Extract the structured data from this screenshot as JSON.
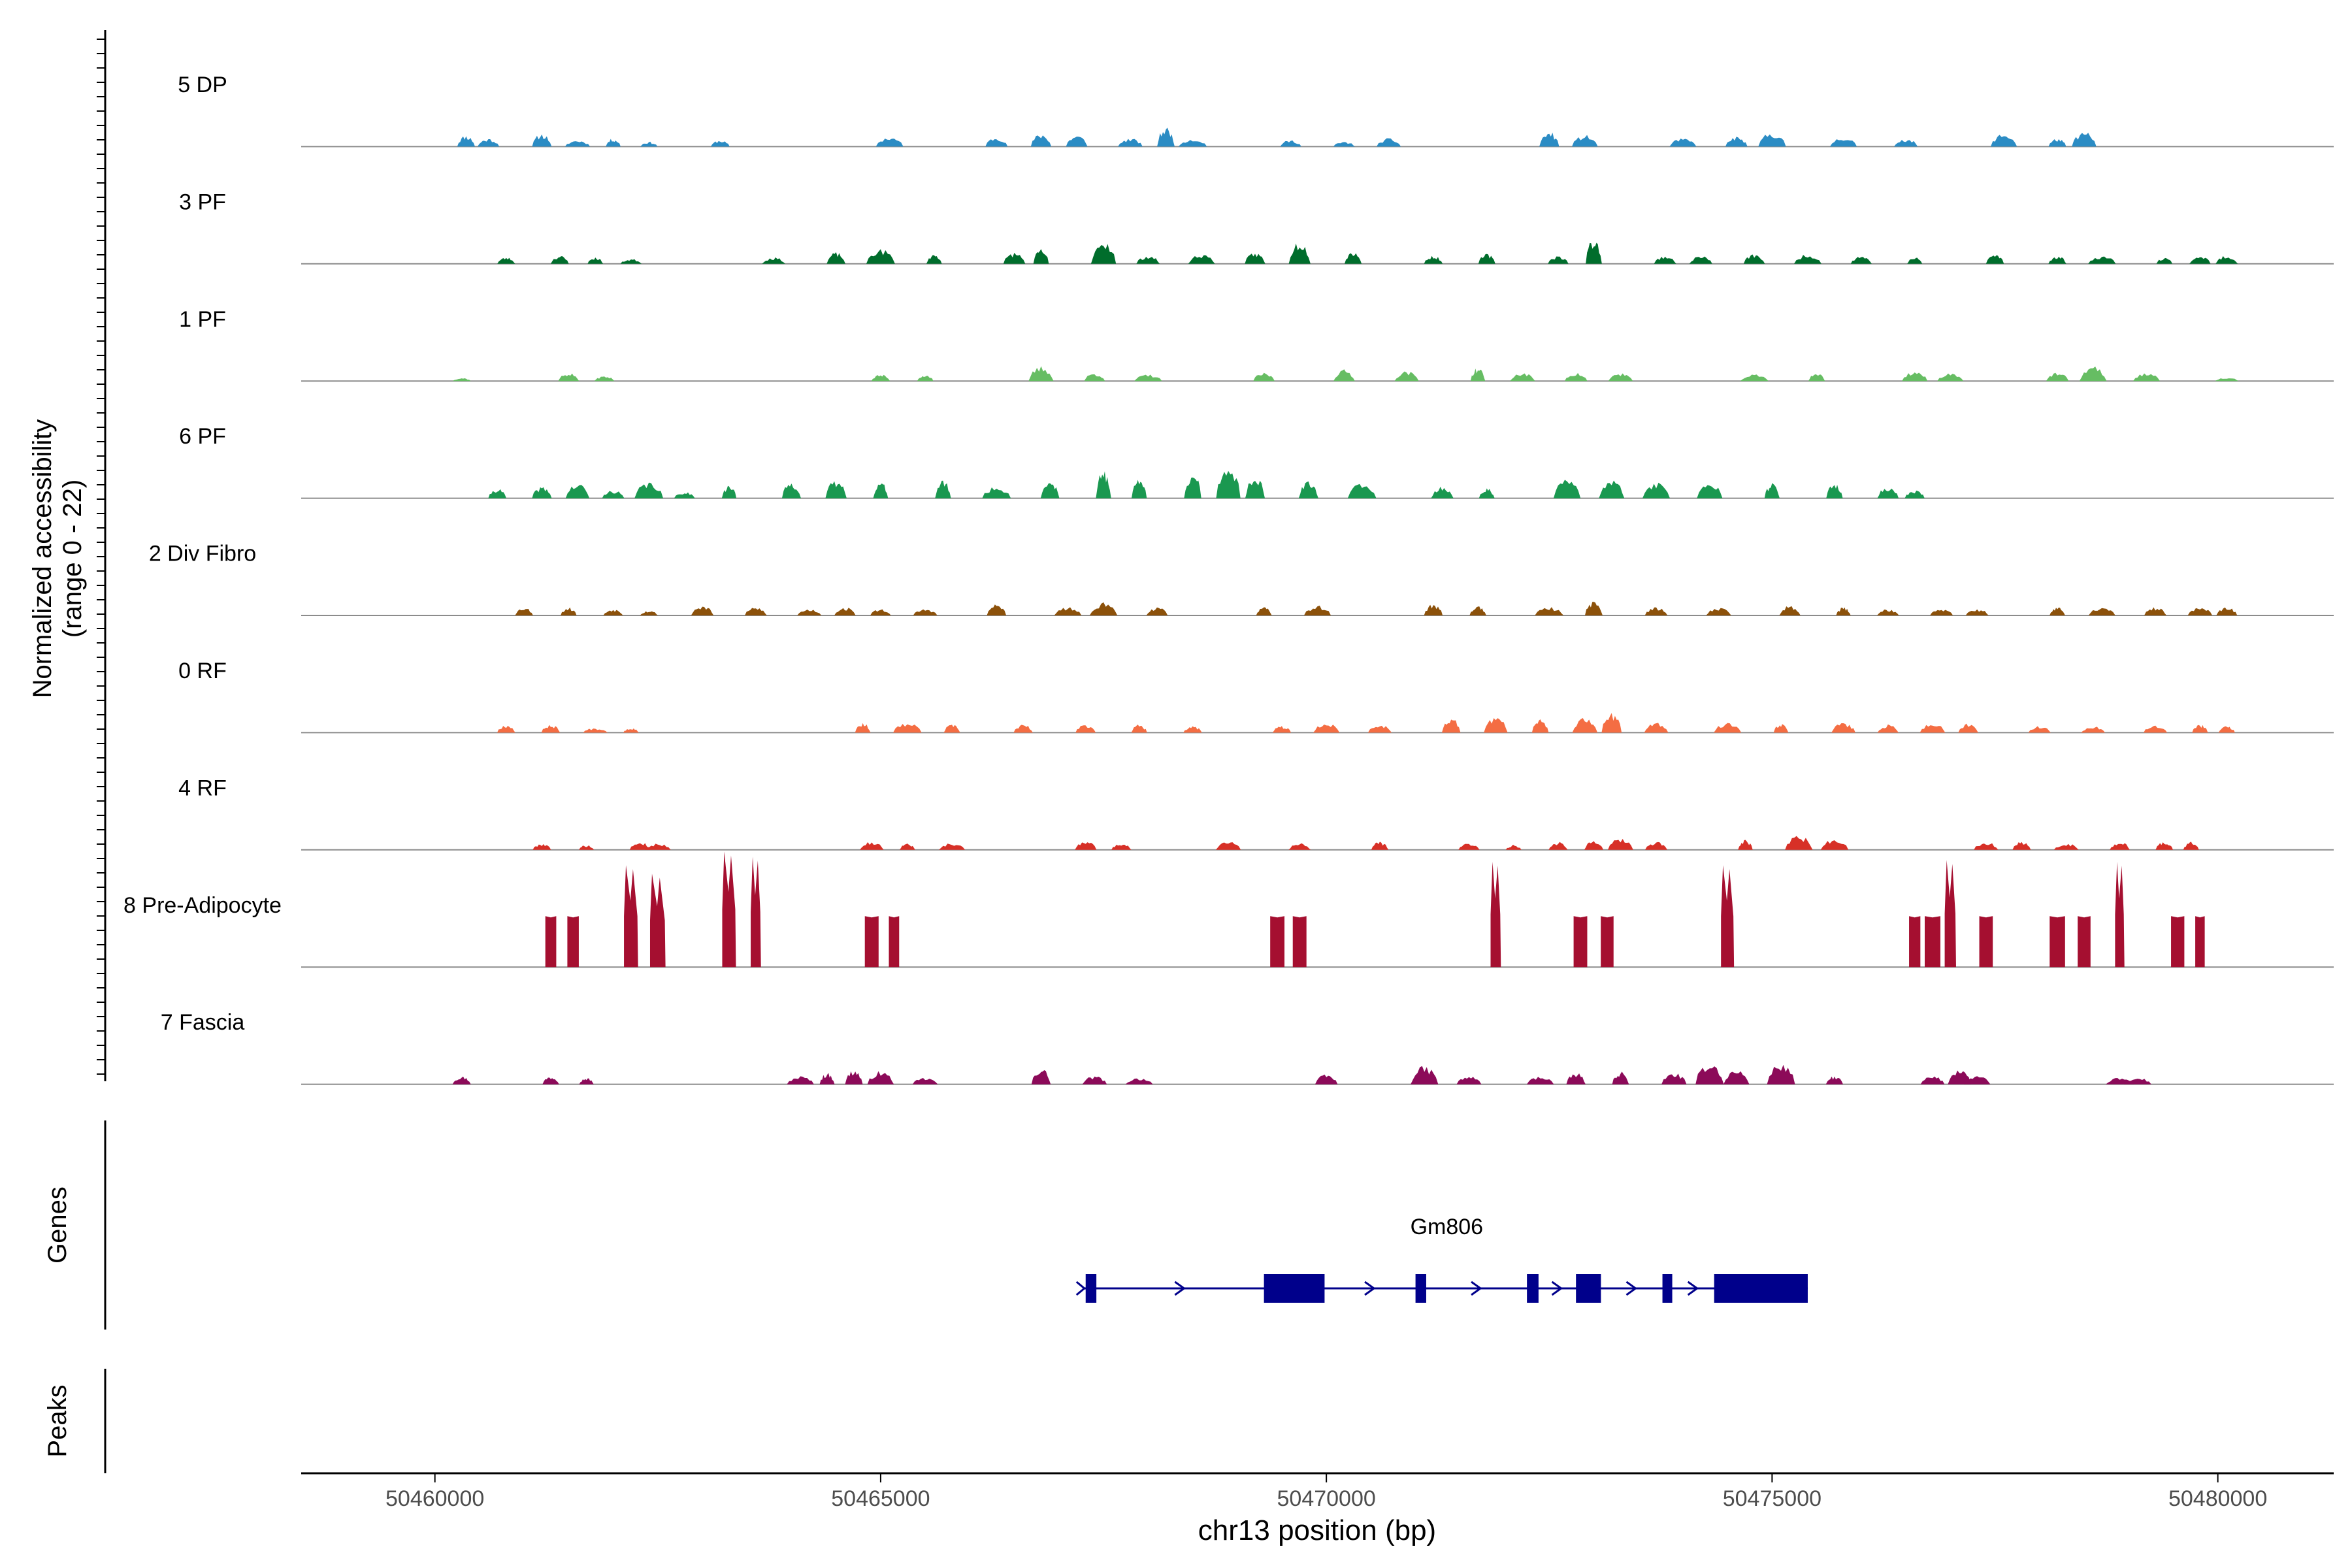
{
  "chart_data": {
    "type": "area",
    "title": "",
    "ylabel_line1": "Normalized accessibility",
    "ylabel_line2": "(range 0 - 22)",
    "xlabel": "chr13 position (bp)",
    "xlim": [
      50458500,
      50481300
    ],
    "xticks": [
      50460000,
      50465000,
      50470000,
      50475000,
      50480000
    ],
    "xtick_labels": [
      "50460000",
      "50465000",
      "50470000",
      "50475000",
      "50480000"
    ],
    "ylim": [
      0,
      22
    ],
    "genes_label": "Genes",
    "peaks_label": "Peaks",
    "tracks": [
      {
        "name": "5 DP",
        "color": "#2b8cc4",
        "seed": 11,
        "peaks": [
          [
            50460350,
            0.7
          ],
          [
            50460600,
            0.5
          ],
          [
            50461200,
            0.8
          ],
          [
            50461600,
            0.4
          ],
          [
            50462000,
            0.5
          ],
          [
            50462400,
            0.3
          ],
          [
            50463200,
            0.4
          ],
          [
            50465100,
            0.6
          ],
          [
            50466300,
            0.6
          ],
          [
            50466800,
            0.8
          ],
          [
            50467200,
            0.7
          ],
          [
            50467800,
            0.5
          ],
          [
            50468200,
            1.2
          ],
          [
            50468500,
            0.5
          ],
          [
            50469600,
            0.4
          ],
          [
            50470200,
            0.3
          ],
          [
            50470700,
            0.5
          ],
          [
            50472500,
            0.9
          ],
          [
            50472900,
            0.7
          ],
          [
            50474000,
            0.5
          ],
          [
            50474600,
            0.6
          ],
          [
            50475000,
            0.9
          ],
          [
            50475800,
            0.6
          ],
          [
            50476500,
            0.5
          ],
          [
            50477600,
            0.8
          ],
          [
            50478200,
            0.5
          ],
          [
            50478500,
            0.9
          ]
        ]
      },
      {
        "name": "3 PF",
        "color": "#006d2c",
        "seed": 23,
        "peaks": [
          [
            50460800,
            0.4
          ],
          [
            50461400,
            0.5
          ],
          [
            50461800,
            0.4
          ],
          [
            50462200,
            0.3
          ],
          [
            50463800,
            0.4
          ],
          [
            50464500,
            0.7
          ],
          [
            50465000,
            0.9
          ],
          [
            50465600,
            0.6
          ],
          [
            50466500,
            0.7
          ],
          [
            50466800,
            0.9
          ],
          [
            50467500,
            1.5
          ],
          [
            50468000,
            0.5
          ],
          [
            50468600,
            0.6
          ],
          [
            50469200,
            0.7
          ],
          [
            50469700,
            1.4
          ],
          [
            50470300,
            0.8
          ],
          [
            50471200,
            0.5
          ],
          [
            50471800,
            0.6
          ],
          [
            50472600,
            0.5
          ],
          [
            50473000,
            1.6
          ],
          [
            50473800,
            0.5
          ],
          [
            50474200,
            0.5
          ],
          [
            50474800,
            0.6
          ],
          [
            50475400,
            0.6
          ],
          [
            50476000,
            0.5
          ],
          [
            50476600,
            0.4
          ],
          [
            50477500,
            0.6
          ],
          [
            50478200,
            0.5
          ],
          [
            50478700,
            0.5
          ],
          [
            50479400,
            0.4
          ],
          [
            50479800,
            0.5
          ],
          [
            50480100,
            0.5
          ]
        ]
      },
      {
        "name": "1 PF",
        "color": "#66bd63",
        "seed": 37,
        "peaks": [
          [
            50460300,
            0.2
          ],
          [
            50461500,
            0.5
          ],
          [
            50461900,
            0.3
          ],
          [
            50465000,
            0.4
          ],
          [
            50465500,
            0.4
          ],
          [
            50466800,
            0.9
          ],
          [
            50467400,
            0.5
          ],
          [
            50468000,
            0.4
          ],
          [
            50469300,
            0.5
          ],
          [
            50470200,
            0.7
          ],
          [
            50470900,
            0.6
          ],
          [
            50471700,
            0.8
          ],
          [
            50472200,
            0.5
          ],
          [
            50472800,
            0.5
          ],
          [
            50473300,
            0.5
          ],
          [
            50474800,
            0.4
          ],
          [
            50475500,
            0.5
          ],
          [
            50476600,
            0.6
          ],
          [
            50477000,
            0.5
          ],
          [
            50478200,
            0.5
          ],
          [
            50478600,
            0.9
          ],
          [
            50479200,
            0.5
          ],
          [
            50480100,
            0.2
          ]
        ]
      },
      {
        "name": "6 PF",
        "color": "#1a9850",
        "seed": 41,
        "peaks": [
          [
            50460700,
            0.6
          ],
          [
            50461200,
            0.7
          ],
          [
            50461600,
            0.9
          ],
          [
            50462000,
            0.5
          ],
          [
            50462400,
            1.0
          ],
          [
            50462800,
            0.4
          ],
          [
            50463300,
            0.8
          ],
          [
            50464000,
            1.0
          ],
          [
            50464500,
            1.1
          ],
          [
            50465000,
            1.0
          ],
          [
            50465700,
            1.1
          ],
          [
            50466300,
            0.7
          ],
          [
            50466900,
            1.1
          ],
          [
            50467500,
            1.7
          ],
          [
            50467900,
            1.2
          ],
          [
            50468500,
            1.6
          ],
          [
            50468900,
            2.1
          ],
          [
            50469200,
            1.4
          ],
          [
            50469800,
            1.0
          ],
          [
            50470400,
            1.0
          ],
          [
            50471300,
            0.7
          ],
          [
            50471800,
            0.6
          ],
          [
            50472700,
            1.2
          ],
          [
            50473200,
            1.1
          ],
          [
            50473700,
            1.0
          ],
          [
            50474300,
            1.1
          ],
          [
            50475000,
            0.9
          ],
          [
            50475700,
            0.9
          ],
          [
            50476300,
            0.7
          ],
          [
            50476600,
            0.5
          ]
        ]
      },
      {
        "name": "2 Div Fibro",
        "color": "#8c510a",
        "seed": 53,
        "peaks": [
          [
            50461000,
            0.5
          ],
          [
            50461500,
            0.5
          ],
          [
            50462000,
            0.4
          ],
          [
            50462400,
            0.3
          ],
          [
            50463000,
            0.6
          ],
          [
            50463600,
            0.5
          ],
          [
            50464200,
            0.4
          ],
          [
            50464600,
            0.5
          ],
          [
            50465000,
            0.4
          ],
          [
            50465500,
            0.4
          ],
          [
            50466300,
            0.7
          ],
          [
            50467100,
            0.5
          ],
          [
            50467500,
            0.8
          ],
          [
            50468100,
            0.5
          ],
          [
            50469300,
            0.5
          ],
          [
            50469900,
            0.6
          ],
          [
            50471200,
            0.7
          ],
          [
            50471700,
            0.6
          ],
          [
            50472500,
            0.5
          ],
          [
            50473000,
            0.9
          ],
          [
            50473700,
            0.5
          ],
          [
            50474400,
            0.5
          ],
          [
            50475200,
            0.6
          ],
          [
            50475800,
            0.5
          ],
          [
            50476300,
            0.4
          ],
          [
            50476900,
            0.4
          ],
          [
            50477300,
            0.4
          ],
          [
            50478200,
            0.5
          ],
          [
            50478700,
            0.5
          ],
          [
            50479300,
            0.5
          ],
          [
            50479800,
            0.5
          ],
          [
            50480100,
            0.5
          ]
        ]
      },
      {
        "name": "0 RF",
        "color": "#f46d43",
        "seed": 67,
        "peaks": [
          [
            50460800,
            0.5
          ],
          [
            50461300,
            0.5
          ],
          [
            50461800,
            0.3
          ],
          [
            50462200,
            0.3
          ],
          [
            50464800,
            0.6
          ],
          [
            50465300,
            0.6
          ],
          [
            50465800,
            0.5
          ],
          [
            50466600,
            0.5
          ],
          [
            50467300,
            0.5
          ],
          [
            50467900,
            0.5
          ],
          [
            50468500,
            0.4
          ],
          [
            50469500,
            0.4
          ],
          [
            50470000,
            0.6
          ],
          [
            50470600,
            0.5
          ],
          [
            50471400,
            0.9
          ],
          [
            50471900,
            1.0
          ],
          [
            50472400,
            0.8
          ],
          [
            50472900,
            0.9
          ],
          [
            50473200,
            1.3
          ],
          [
            50473700,
            0.6
          ],
          [
            50474500,
            0.6
          ],
          [
            50475100,
            0.6
          ],
          [
            50475800,
            0.6
          ],
          [
            50476300,
            0.5
          ],
          [
            50476800,
            0.6
          ],
          [
            50477200,
            0.6
          ],
          [
            50478000,
            0.4
          ],
          [
            50478600,
            0.4
          ],
          [
            50479300,
            0.5
          ],
          [
            50479800,
            0.5
          ],
          [
            50480100,
            0.4
          ]
        ]
      },
      {
        "name": "4 RF",
        "color": "#d73027",
        "seed": 79,
        "peaks": [
          [
            50461200,
            0.4
          ],
          [
            50461700,
            0.3
          ],
          [
            50462300,
            0.5
          ],
          [
            50462500,
            0.4
          ],
          [
            50464900,
            0.5
          ],
          [
            50465300,
            0.4
          ],
          [
            50465800,
            0.4
          ],
          [
            50467300,
            0.6
          ],
          [
            50467700,
            0.4
          ],
          [
            50468900,
            0.6
          ],
          [
            50469700,
            0.4
          ],
          [
            50470600,
            0.5
          ],
          [
            50471600,
            0.4
          ],
          [
            50472100,
            0.3
          ],
          [
            50472600,
            0.5
          ],
          [
            50473000,
            0.6
          ],
          [
            50473300,
            0.7
          ],
          [
            50473700,
            0.5
          ],
          [
            50474700,
            0.6
          ],
          [
            50475300,
            0.9
          ],
          [
            50475700,
            0.7
          ],
          [
            50477400,
            0.5
          ],
          [
            50477800,
            0.5
          ],
          [
            50478300,
            0.4
          ],
          [
            50478900,
            0.5
          ],
          [
            50479400,
            0.5
          ],
          [
            50479700,
            0.5
          ]
        ]
      },
      {
        "name": "8 Pre-Adipocyte",
        "color": "#a50f30",
        "seed": 89,
        "peaks": [
          [
            50461300,
            3.0
          ],
          [
            50461550,
            3.0
          ],
          [
            50462200,
            6.0
          ],
          [
            50462500,
            5.5
          ],
          [
            50463300,
            6.8
          ],
          [
            50463600,
            6.5
          ],
          [
            50464900,
            3.0
          ],
          [
            50465150,
            3.0
          ],
          [
            50469450,
            3.0
          ],
          [
            50469700,
            3.0
          ],
          [
            50471900,
            6.2
          ],
          [
            50472850,
            3.0
          ],
          [
            50473150,
            3.0
          ],
          [
            50474500,
            6.0
          ],
          [
            50476600,
            3.0
          ],
          [
            50476800,
            3.0
          ],
          [
            50477000,
            6.3
          ],
          [
            50477400,
            3.0
          ],
          [
            50478200,
            3.0
          ],
          [
            50478500,
            3.0
          ],
          [
            50478900,
            6.2
          ],
          [
            50479550,
            3.0
          ],
          [
            50479800,
            3.0
          ]
        ]
      },
      {
        "name": "7 Fascia",
        "color": "#8c0a59",
        "seed": 97,
        "peaks": [
          [
            50460300,
            0.5
          ],
          [
            50461300,
            0.5
          ],
          [
            50461700,
            0.4
          ],
          [
            50464100,
            0.5
          ],
          [
            50464400,
            0.7
          ],
          [
            50464700,
            0.9
          ],
          [
            50465000,
            0.8
          ],
          [
            50465500,
            0.4
          ],
          [
            50466800,
            1.0
          ],
          [
            50467400,
            0.5
          ],
          [
            50467900,
            0.4
          ],
          [
            50470000,
            0.6
          ],
          [
            50471100,
            1.1
          ],
          [
            50471600,
            0.5
          ],
          [
            50472400,
            0.5
          ],
          [
            50472800,
            0.7
          ],
          [
            50473300,
            0.8
          ],
          [
            50473900,
            0.7
          ],
          [
            50474300,
            1.4
          ],
          [
            50474600,
            0.9
          ],
          [
            50475100,
            1.3
          ],
          [
            50475700,
            0.5
          ],
          [
            50476800,
            0.5
          ],
          [
            50477100,
            1.0
          ],
          [
            50477300,
            0.5
          ],
          [
            50478900,
            0.4
          ],
          [
            50479100,
            0.4
          ]
        ]
      }
    ],
    "gene": {
      "name": "Gm806",
      "strand": "+",
      "start": 50467300,
      "end": 50475400,
      "color": "#00008b",
      "exons": [
        [
          50467300,
          50467420
        ],
        [
          50469300,
          50469980
        ],
        [
          50471000,
          50471120
        ],
        [
          50472250,
          50472380
        ],
        [
          50472800,
          50473080
        ],
        [
          50473770,
          50473880
        ],
        [
          50474350,
          50475400
        ]
      ]
    }
  }
}
